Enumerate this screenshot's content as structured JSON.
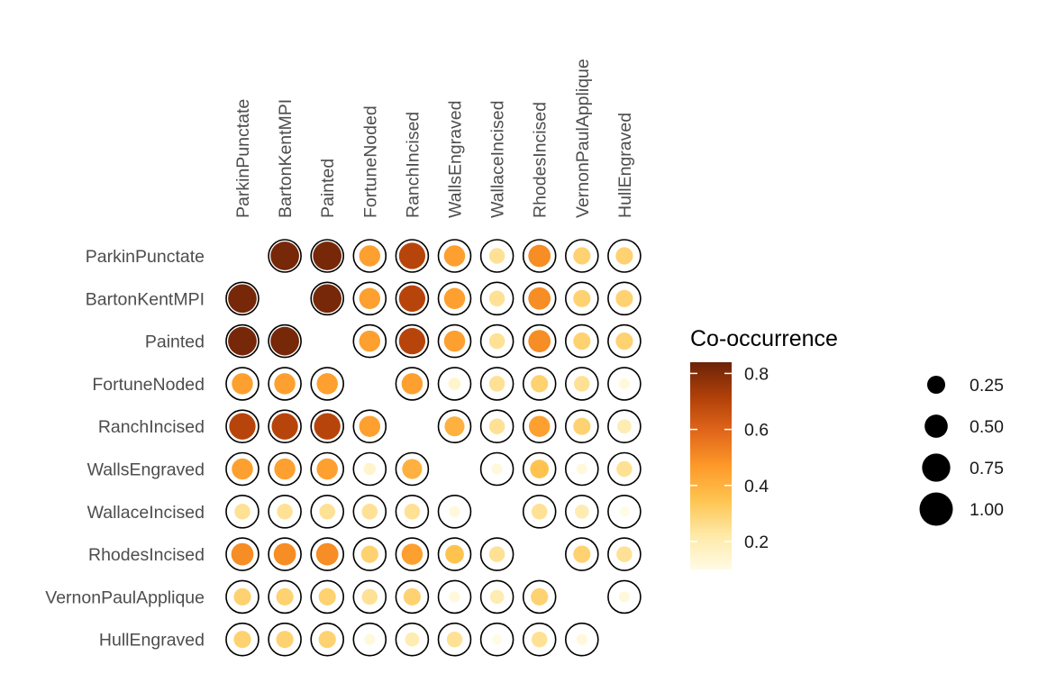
{
  "chart_data": {
    "type": "heatmap",
    "title": "",
    "xlabel": "",
    "ylabel": "",
    "columns": [
      "ParkinPunctate",
      "BartonKentMPI",
      "Painted",
      "FortuneNoded",
      "RanchIncised",
      "WallsEngraved",
      "WallaceIncised",
      "RhodesIncised",
      "VernonPaulApplique",
      "HullEngraved"
    ],
    "rows": [
      "ParkinPunctate",
      "BartonKentMPI",
      "Painted",
      "FortuneNoded",
      "RanchIncised",
      "WallsEngraved",
      "WallaceIncised",
      "RhodesIncised",
      "VernonPaulApplique",
      "HullEngraved"
    ],
    "values": [
      [
        null,
        0.82,
        0.82,
        0.45,
        0.7,
        0.45,
        0.25,
        0.5,
        0.3,
        0.3
      ],
      [
        0.82,
        null,
        0.82,
        0.45,
        0.7,
        0.45,
        0.25,
        0.5,
        0.3,
        0.3
      ],
      [
        0.82,
        0.82,
        null,
        0.45,
        0.7,
        0.45,
        0.25,
        0.5,
        0.3,
        0.3
      ],
      [
        0.45,
        0.45,
        0.45,
        null,
        0.45,
        0.15,
        0.25,
        0.3,
        0.25,
        0.12
      ],
      [
        0.7,
        0.7,
        0.7,
        0.45,
        null,
        0.4,
        0.25,
        0.45,
        0.3,
        0.2
      ],
      [
        0.45,
        0.45,
        0.45,
        0.15,
        0.4,
        null,
        0.12,
        0.35,
        0.12,
        0.25
      ],
      [
        0.25,
        0.25,
        0.25,
        0.25,
        0.25,
        0.12,
        null,
        0.25,
        0.2,
        0.1
      ],
      [
        0.5,
        0.5,
        0.5,
        0.3,
        0.45,
        0.35,
        0.25,
        null,
        0.3,
        0.25
      ],
      [
        0.3,
        0.3,
        0.3,
        0.25,
        0.3,
        0.12,
        0.2,
        0.3,
        null,
        0.12
      ],
      [
        0.3,
        0.3,
        0.3,
        0.12,
        0.2,
        0.25,
        0.1,
        0.25,
        0.12,
        null
      ]
    ],
    "outline_circles": true,
    "grid": false,
    "color_legend": {
      "title": "Co-occurrence",
      "range": [
        0.1,
        0.84
      ],
      "ticks": [
        0.8,
        0.6,
        0.4,
        0.2
      ],
      "tick_labels": [
        "0.8",
        "0.6",
        "0.4",
        "0.2"
      ],
      "placement": "right",
      "colors": [
        "#fffbe4",
        "#fee9a7",
        "#fec450",
        "#fd9929",
        "#e1661a",
        "#b04009",
        "#6b2308"
      ]
    },
    "size_legend": {
      "placement": "right",
      "values": [
        0.25,
        0.5,
        0.75,
        1.0
      ],
      "labels": [
        "0.25",
        "0.50",
        "0.75",
        "1.00"
      ]
    }
  }
}
